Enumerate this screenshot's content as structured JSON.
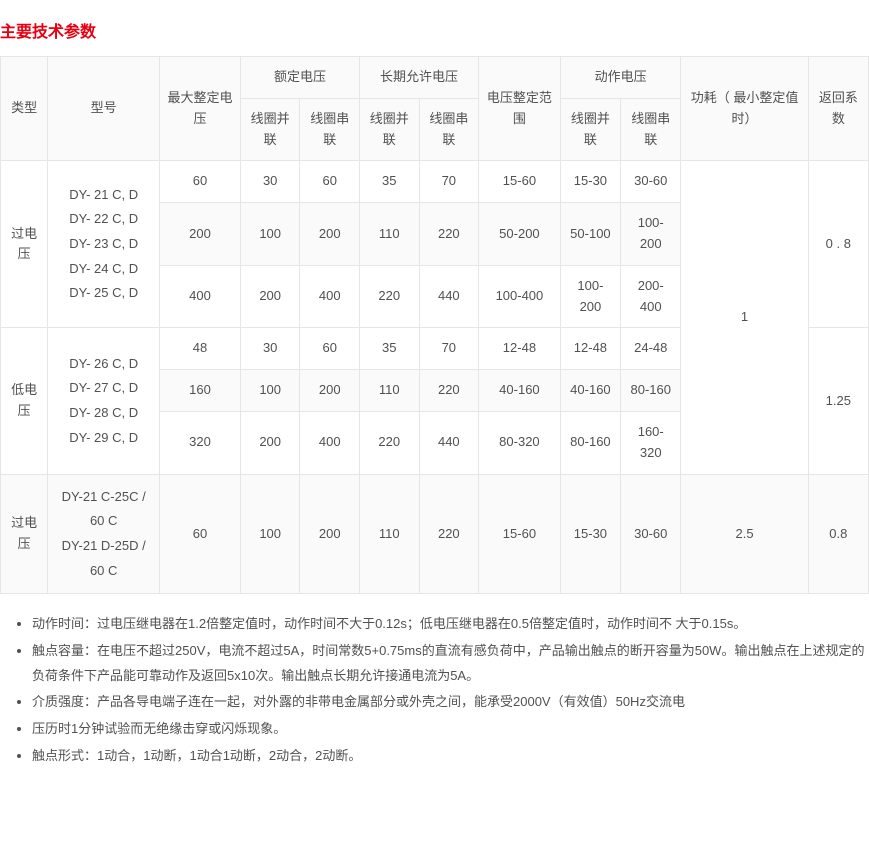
{
  "title": "主要技术参数",
  "styling": {
    "title_color": "#e60012",
    "title_fontsize": 16,
    "body_font": "Microsoft YaHei",
    "cell_fontsize": 13,
    "text_color": "#515151",
    "border_color": "#e6e6e6",
    "header_bg": "#fafafa",
    "row_bg": "#ffffff",
    "alt_row_bg": "#fafafa"
  },
  "columns": {
    "type": "类型",
    "model": "型号",
    "max_setting_voltage": "最大整定电压",
    "rated_voltage": "额定电压",
    "long_term_allowed_voltage": "长期允许电压",
    "coil_parallel": "线圈并联",
    "coil_series": "线圈串联",
    "voltage_setting_range": "电压整定范围",
    "operating_voltage": "动作电压",
    "power_consumption": "功耗（ 最小整定值时）",
    "return_coefficient": "返回系数"
  },
  "types": {
    "over": "过电压",
    "under": "低电压"
  },
  "groups": [
    {
      "type_key": "over",
      "model_html": "DY- 21 C, D\nDY- 22 C, D\nDY- 23 C, D\nDY- 24 C, D\nDY- 25 C, D",
      "rows": [
        {
          "max": "60",
          "rp": "30",
          "rs": "60",
          "lp": "35",
          "ls": "70",
          "range": "15-60",
          "op_p": "15-30",
          "op_s": "30-60"
        },
        {
          "max": "200",
          "rp": "100",
          "rs": "200",
          "lp": "110",
          "ls": "220",
          "range": "50-200",
          "op_p": "50-100",
          "op_s": "100-200"
        },
        {
          "max": "400",
          "rp": "200",
          "rs": "400",
          "lp": "220",
          "ls": "440",
          "range": "100-400",
          "op_p": "100-200",
          "op_s": "200-400"
        }
      ],
      "return_coef": "0 . 8"
    },
    {
      "type_key": "under",
      "model_html": "DY- 26 C, D\nDY- 27 C, D\nDY- 28 C, D\nDY- 29 C, D",
      "rows": [
        {
          "max": "48",
          "rp": "30",
          "rs": "60",
          "lp": "35",
          "ls": "70",
          "range": "12-48",
          "op_p": "12-48",
          "op_s": "24-48"
        },
        {
          "max": "160",
          "rp": "100",
          "rs": "200",
          "lp": "110",
          "ls": "220",
          "range": "40-160",
          "op_p": "40-160",
          "op_s": "80-160"
        },
        {
          "max": "320",
          "rp": "200",
          "rs": "400",
          "lp": "220",
          "ls": "440",
          "range": "80-320",
          "op_p": "80-160",
          "op_s": "160-320"
        }
      ],
      "return_coef": "1.25"
    }
  ],
  "power_consumption_top": "1",
  "last_group": {
    "type_key": "over",
    "model_html": "DY-21 C-25C / 60 C\nDY-21 D-25D / 60 C",
    "row": {
      "max": "60",
      "rp": "100",
      "rs": "200",
      "lp": "110",
      "ls": "220",
      "range": "15-60",
      "op_p": "15-30",
      "op_s": "30-60"
    },
    "power": "2.5",
    "return_coef": "0.8"
  },
  "notes": [
    "动作时间：过电压继电器在1.2倍整定值时，动作时间不大于0.12s；低电压继电器在0.5倍整定值时，动作时间不 大于0.15s。",
    "触点容量：在电压不超过250V，电流不超过5A，时间常数5+0.75ms的直流有感负荷中，产品输出触点的断开容量为50W。输出触点在上述规定的负荷条件下产品能可靠动作及返回5x10次。输出触点长期允许接通电流为5A。",
    "介质强度：产品各导电端子连在一起，对外露的非带电金属部分或外壳之间，能承受2000V（有效值）50Hz交流电",
    "压历时1分钟试验而无绝缘击穿或闪烁现象。",
    "触点形式：1动合，1动断，1动合1动断，2动合，2动断。"
  ]
}
